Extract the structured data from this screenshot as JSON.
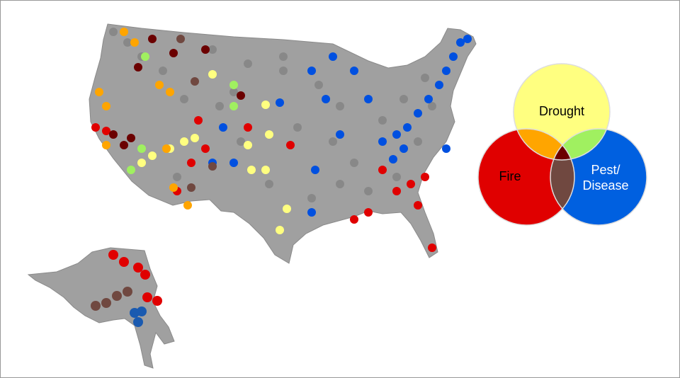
{
  "legend": {
    "circles": [
      {
        "label": [
          "Drought"
        ],
        "color": "#ffff80"
      },
      {
        "label": [
          "Fire"
        ],
        "color": "#e00000"
      },
      {
        "label": [
          "Pest/",
          "Disease"
        ],
        "color": "#0060e0"
      }
    ]
  }
}
